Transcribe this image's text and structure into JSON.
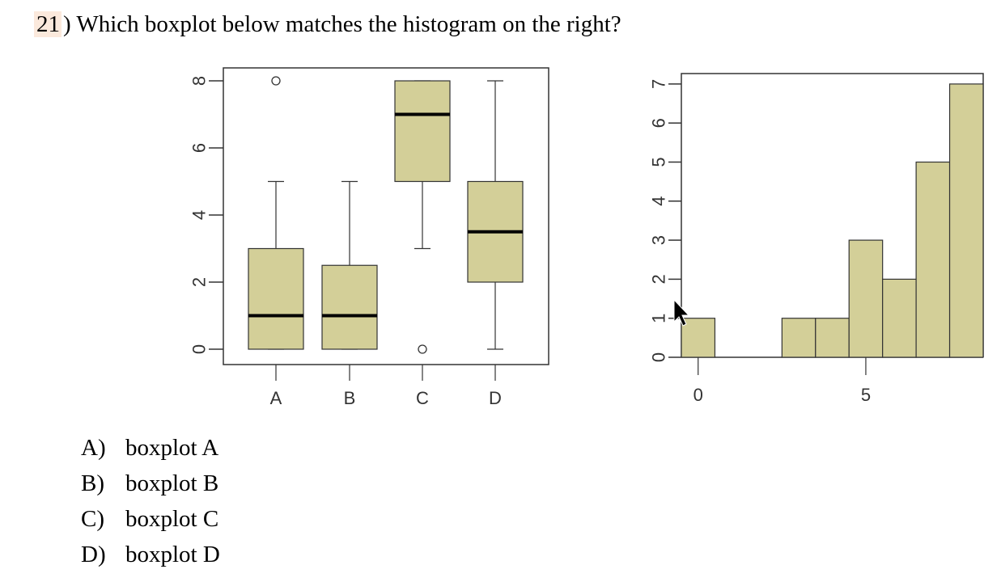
{
  "question": {
    "number": "21",
    "text": ") Which boxplot below matches the histogram on the right?"
  },
  "choices": [
    {
      "letter": "A)",
      "text": "boxplot A"
    },
    {
      "letter": "B)",
      "text": "boxplot B"
    },
    {
      "letter": "C)",
      "text": "boxplot C"
    },
    {
      "letter": "D)",
      "text": "boxplot D"
    }
  ],
  "colors": {
    "box_fill": "#d3cf98",
    "median": "#000000",
    "frame": "#333333"
  },
  "chart_data": [
    {
      "type": "boxplot",
      "ylim": [
        -0.4,
        8.1
      ],
      "y_ticks": [
        "0",
        "2",
        "4",
        "6",
        "8"
      ],
      "categories": [
        "A",
        "B",
        "C",
        "D"
      ],
      "boxes": [
        {
          "name": "A",
          "whisker_low": 0,
          "q1": 0,
          "median": 1,
          "q3": 3,
          "whisker_high": 5,
          "outliers": [
            8
          ]
        },
        {
          "name": "B",
          "whisker_low": 0,
          "q1": 0,
          "median": 1,
          "q3": 2.5,
          "whisker_high": 5,
          "outliers": []
        },
        {
          "name": "C",
          "whisker_low": 3,
          "q1": 5,
          "median": 7,
          "q3": 8,
          "whisker_high": 8,
          "outliers": [
            0
          ]
        },
        {
          "name": "D",
          "whisker_low": 0,
          "q1": 2,
          "median": 3.5,
          "q3": 5,
          "whisker_high": 8,
          "outliers": []
        }
      ],
      "grid": false
    },
    {
      "type": "histogram",
      "ylim": [
        0,
        7.3
      ],
      "xlim": [
        -0.5,
        8.5
      ],
      "y_ticks": [
        "0",
        "1",
        "2",
        "3",
        "4",
        "5",
        "6",
        "7"
      ],
      "x_ticks": [
        "0",
        "5"
      ],
      "bins": [
        {
          "start": -0.5,
          "end": 0.5,
          "count": 1
        },
        {
          "start": 0.5,
          "end": 1.5,
          "count": 0
        },
        {
          "start": 1.5,
          "end": 2.5,
          "count": 0
        },
        {
          "start": 2.5,
          "end": 3.5,
          "count": 1
        },
        {
          "start": 3.5,
          "end": 4.5,
          "count": 1
        },
        {
          "start": 4.5,
          "end": 5.5,
          "count": 3
        },
        {
          "start": 5.5,
          "end": 6.5,
          "count": 2
        },
        {
          "start": 6.5,
          "end": 7.5,
          "count": 5
        },
        {
          "start": 7.5,
          "end": 8.5,
          "count": 7
        }
      ],
      "grid": false
    }
  ]
}
